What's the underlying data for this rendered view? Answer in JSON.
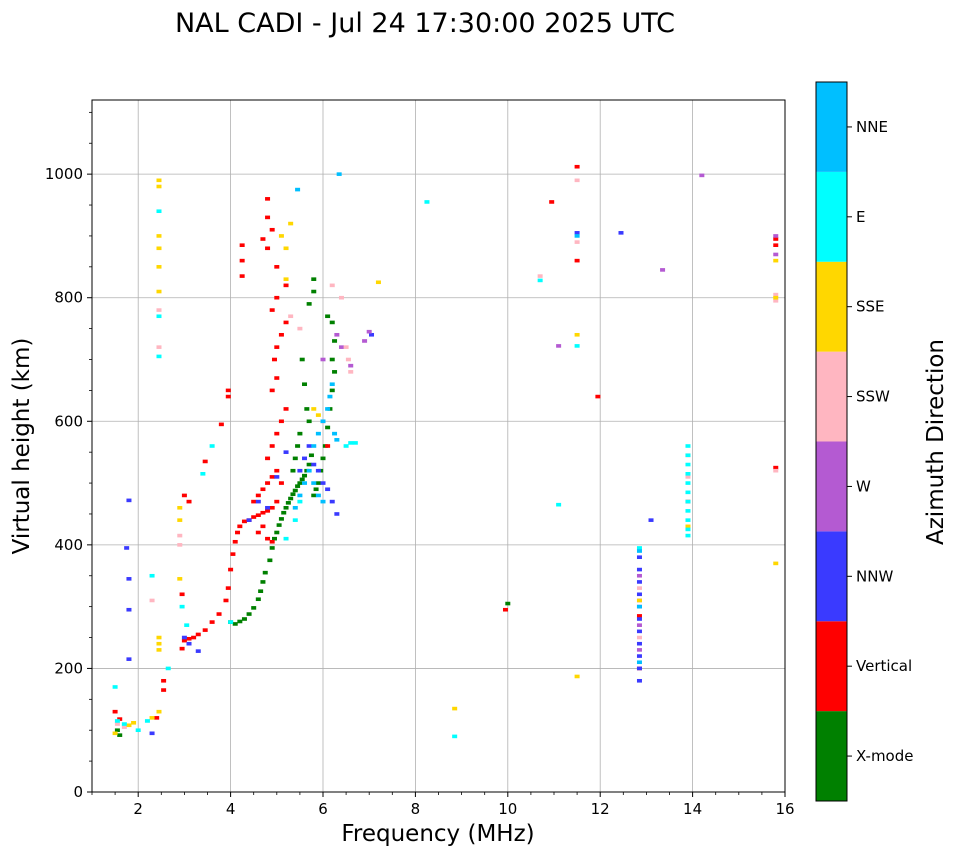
{
  "chart_data": {
    "type": "scatter",
    "title": "NAL CADI - Jul 24 17:30:00 2025 UTC",
    "xlabel": "Frequency (MHz)",
    "ylabel": "Virtual height (km)",
    "xlim": [
      1,
      16
    ],
    "ylim": [
      0,
      1120
    ],
    "xticks": [
      2,
      4,
      6,
      8,
      10,
      12,
      14,
      16
    ],
    "yticks": [
      0,
      200,
      400,
      600,
      800,
      1000
    ],
    "grid": true,
    "colorbar": {
      "title": "Azimuth Direction",
      "categories": [
        {
          "name": "X-mode",
          "color": "#008000"
        },
        {
          "name": "Vertical",
          "color": "#ff0000"
        },
        {
          "name": "NNW",
          "color": "#3a3aff"
        },
        {
          "name": "W",
          "color": "#b45ad2"
        },
        {
          "name": "SSW",
          "color": "#ffb6c1"
        },
        {
          "name": "SSE",
          "color": "#ffd700"
        },
        {
          "name": "E",
          "color": "#00ffff"
        },
        {
          "name": "NNE",
          "color": "#00bfff"
        }
      ]
    },
    "series": [
      {
        "name": "X-mode",
        "points": [
          [
            1.55,
            100
          ],
          [
            1.6,
            92
          ],
          [
            4.0,
            275
          ],
          [
            4.1,
            272
          ],
          [
            4.2,
            276
          ],
          [
            4.3,
            280
          ],
          [
            4.4,
            288
          ],
          [
            4.5,
            298
          ],
          [
            4.6,
            312
          ],
          [
            4.65,
            325
          ],
          [
            4.7,
            340
          ],
          [
            4.75,
            355
          ],
          [
            4.85,
            375
          ],
          [
            4.9,
            395
          ],
          [
            4.95,
            410
          ],
          [
            5.0,
            420
          ],
          [
            5.05,
            432
          ],
          [
            5.1,
            442
          ],
          [
            5.15,
            452
          ],
          [
            5.2,
            460
          ],
          [
            5.25,
            468
          ],
          [
            5.3,
            475
          ],
          [
            5.35,
            482
          ],
          [
            5.4,
            488
          ],
          [
            5.45,
            495
          ],
          [
            5.5,
            500
          ],
          [
            5.55,
            506
          ],
          [
            5.6,
            512
          ],
          [
            5.65,
            520
          ],
          [
            5.7,
            530
          ],
          [
            5.75,
            545
          ],
          [
            5.8,
            480
          ],
          [
            5.85,
            490
          ],
          [
            5.9,
            500
          ],
          [
            5.95,
            520
          ],
          [
            6.0,
            540
          ],
          [
            6.05,
            560
          ],
          [
            6.1,
            590
          ],
          [
            6.15,
            620
          ],
          [
            6.2,
            650
          ],
          [
            6.25,
            680
          ],
          [
            6.2,
            700
          ],
          [
            6.25,
            730
          ],
          [
            6.2,
            760
          ],
          [
            6.1,
            770
          ],
          [
            5.7,
            790
          ],
          [
            5.8,
            810
          ],
          [
            5.8,
            830
          ],
          [
            5.55,
            700
          ],
          [
            5.6,
            660
          ],
          [
            5.65,
            620
          ],
          [
            5.7,
            600
          ],
          [
            5.5,
            580
          ],
          [
            5.45,
            560
          ],
          [
            5.4,
            540
          ],
          [
            5.35,
            520
          ],
          [
            10.0,
            305
          ]
        ]
      },
      {
        "name": "Vertical",
        "points": [
          [
            1.5,
            130
          ],
          [
            1.6,
            118
          ],
          [
            2.4,
            120
          ],
          [
            2.55,
            165
          ],
          [
            2.55,
            180
          ],
          [
            2.95,
            232
          ],
          [
            3.0,
            245
          ],
          [
            3.1,
            248
          ],
          [
            3.2,
            250
          ],
          [
            3.3,
            255
          ],
          [
            3.45,
            262
          ],
          [
            3.6,
            275
          ],
          [
            3.75,
            288
          ],
          [
            3.9,
            310
          ],
          [
            3.95,
            330
          ],
          [
            4.0,
            360
          ],
          [
            4.05,
            385
          ],
          [
            4.1,
            405
          ],
          [
            4.15,
            420
          ],
          [
            4.2,
            430
          ],
          [
            4.3,
            438
          ],
          [
            4.4,
            440
          ],
          [
            4.5,
            445
          ],
          [
            4.6,
            448
          ],
          [
            4.7,
            452
          ],
          [
            4.8,
            455
          ],
          [
            4.9,
            460
          ],
          [
            5.0,
            470
          ],
          [
            4.6,
            420
          ],
          [
            4.7,
            430
          ],
          [
            4.8,
            410
          ],
          [
            4.9,
            405
          ],
          [
            4.5,
            470
          ],
          [
            4.6,
            480
          ],
          [
            4.7,
            490
          ],
          [
            4.8,
            500
          ],
          [
            4.9,
            510
          ],
          [
            5.0,
            520
          ],
          [
            5.1,
            500
          ],
          [
            4.8,
            540
          ],
          [
            4.9,
            560
          ],
          [
            5.0,
            580
          ],
          [
            5.1,
            600
          ],
          [
            5.2,
            620
          ],
          [
            4.9,
            650
          ],
          [
            5.0,
            670
          ],
          [
            4.95,
            700
          ],
          [
            5.0,
            720
          ],
          [
            5.1,
            740
          ],
          [
            5.2,
            760
          ],
          [
            4.9,
            780
          ],
          [
            5.0,
            800
          ],
          [
            5.2,
            820
          ],
          [
            5.0,
            850
          ],
          [
            4.8,
            880
          ],
          [
            4.7,
            895
          ],
          [
            4.9,
            910
          ],
          [
            4.8,
            930
          ],
          [
            4.8,
            960
          ],
          [
            4.25,
            835
          ],
          [
            4.25,
            860
          ],
          [
            4.25,
            885
          ],
          [
            3.95,
            640
          ],
          [
            3.95,
            650
          ],
          [
            3.8,
            595
          ],
          [
            2.95,
            320
          ],
          [
            3.1,
            470
          ],
          [
            3.0,
            480
          ],
          [
            3.45,
            535
          ],
          [
            6.0,
            600
          ],
          [
            6.1,
            560
          ],
          [
            11.95,
            640
          ],
          [
            11.5,
            1012
          ],
          [
            11.5,
            860
          ],
          [
            10.95,
            955
          ],
          [
            9.95,
            295
          ],
          [
            15.8,
            885
          ],
          [
            15.8,
            895
          ],
          [
            15.8,
            525
          ],
          [
            13.9,
            545
          ],
          [
            13.9,
            470
          ],
          [
            12.85,
            200
          ],
          [
            12.85,
            285
          ]
        ]
      },
      {
        "name": "NNW",
        "points": [
          [
            1.8,
            472
          ],
          [
            1.75,
            395
          ],
          [
            1.8,
            345
          ],
          [
            1.8,
            295
          ],
          [
            1.8,
            215
          ],
          [
            2.3,
            95
          ],
          [
            3.0,
            250
          ],
          [
            3.1,
            240
          ],
          [
            5.6,
            540
          ],
          [
            5.7,
            560
          ],
          [
            5.8,
            530
          ],
          [
            5.9,
            520
          ],
          [
            6.0,
            500
          ],
          [
            6.1,
            490
          ],
          [
            6.2,
            470
          ],
          [
            6.3,
            450
          ],
          [
            5.2,
            550
          ],
          [
            5.5,
            520
          ],
          [
            5.0,
            510
          ],
          [
            4.8,
            460
          ],
          [
            4.6,
            470
          ],
          [
            4.4,
            440
          ],
          [
            12.85,
            180
          ],
          [
            12.85,
            200
          ],
          [
            12.85,
            220
          ],
          [
            12.85,
            240
          ],
          [
            12.85,
            260
          ],
          [
            12.85,
            280
          ],
          [
            12.85,
            300
          ],
          [
            12.85,
            320
          ],
          [
            12.85,
            340
          ],
          [
            12.85,
            360
          ],
          [
            12.85,
            380
          ],
          [
            13.1,
            440
          ],
          [
            12.45,
            905
          ],
          [
            11.5,
            905
          ],
          [
            7.05,
            740
          ],
          [
            3.3,
            228
          ]
        ]
      },
      {
        "name": "W",
        "points": [
          [
            6.3,
            740
          ],
          [
            6.6,
            690
          ],
          [
            6.9,
            730
          ],
          [
            7.0,
            745
          ],
          [
            6.4,
            720
          ],
          [
            6.0,
            700
          ],
          [
            12.85,
            230
          ],
          [
            12.85,
            270
          ],
          [
            12.85,
            310
          ],
          [
            12.85,
            350
          ],
          [
            13.35,
            845
          ],
          [
            14.2,
            998
          ],
          [
            15.8,
            900
          ],
          [
            15.8,
            870
          ],
          [
            11.1,
            722
          ]
        ]
      },
      {
        "name": "SSW",
        "points": [
          [
            1.55,
            110
          ],
          [
            1.7,
            105
          ],
          [
            2.3,
            310
          ],
          [
            2.9,
            400
          ],
          [
            2.9,
            415
          ],
          [
            2.45,
            720
          ],
          [
            2.45,
            780
          ],
          [
            5.3,
            770
          ],
          [
            5.5,
            750
          ],
          [
            6.2,
            820
          ],
          [
            6.4,
            800
          ],
          [
            6.5,
            720
          ],
          [
            6.55,
            700
          ],
          [
            6.6,
            680
          ],
          [
            10.7,
            835
          ],
          [
            11.5,
            990
          ],
          [
            11.5,
            890
          ],
          [
            15.8,
            805
          ],
          [
            15.8,
            795
          ],
          [
            12.85,
            250
          ],
          [
            12.85,
            330
          ],
          [
            13.9,
            510
          ],
          [
            15.8,
            520
          ]
        ]
      },
      {
        "name": "SSE",
        "points": [
          [
            1.5,
            95
          ],
          [
            1.8,
            108
          ],
          [
            1.9,
            112
          ],
          [
            2.3,
            120
          ],
          [
            2.45,
            130
          ],
          [
            2.45,
            240
          ],
          [
            2.45,
            230
          ],
          [
            2.45,
            250
          ],
          [
            2.45,
            850
          ],
          [
            2.45,
            880
          ],
          [
            2.45,
            900
          ],
          [
            2.45,
            810
          ],
          [
            2.45,
            980
          ],
          [
            2.45,
            990
          ],
          [
            2.9,
            440
          ],
          [
            2.9,
            460
          ],
          [
            2.9,
            345
          ],
          [
            5.2,
            880
          ],
          [
            5.3,
            920
          ],
          [
            5.1,
            900
          ],
          [
            5.2,
            830
          ],
          [
            5.8,
            620
          ],
          [
            5.9,
            610
          ],
          [
            7.2,
            825
          ],
          [
            8.85,
            135
          ],
          [
            11.5,
            187
          ],
          [
            11.5,
            740
          ],
          [
            15.8,
            370
          ],
          [
            15.8,
            860
          ],
          [
            15.8,
            800
          ],
          [
            12.85,
            310
          ],
          [
            13.9,
            430
          ]
        ]
      },
      {
        "name": "E",
        "points": [
          [
            1.5,
            170
          ],
          [
            1.55,
            115
          ],
          [
            1.7,
            110
          ],
          [
            2.0,
            100
          ],
          [
            2.2,
            115
          ],
          [
            2.3,
            350
          ],
          [
            2.45,
            705
          ],
          [
            2.45,
            770
          ],
          [
            2.45,
            940
          ],
          [
            2.65,
            200
          ],
          [
            2.95,
            300
          ],
          [
            3.05,
            270
          ],
          [
            3.4,
            515
          ],
          [
            3.6,
            560
          ],
          [
            5.2,
            410
          ],
          [
            5.4,
            440
          ],
          [
            5.5,
            470
          ],
          [
            6.5,
            560
          ],
          [
            6.6,
            565
          ],
          [
            6.7,
            565
          ],
          [
            8.25,
            955
          ],
          [
            8.85,
            90
          ],
          [
            11.1,
            465
          ],
          [
            11.5,
            722
          ],
          [
            12.85,
            395
          ],
          [
            13.9,
            415
          ],
          [
            13.9,
            425
          ],
          [
            13.9,
            440
          ],
          [
            13.9,
            455
          ],
          [
            13.9,
            470
          ],
          [
            13.9,
            485
          ],
          [
            13.9,
            500
          ],
          [
            13.9,
            515
          ],
          [
            13.9,
            530
          ],
          [
            13.9,
            545
          ],
          [
            13.9,
            560
          ],
          [
            10.7,
            828
          ],
          [
            4.0,
            275
          ]
        ]
      },
      {
        "name": "NNE",
        "points": [
          [
            5.45,
            975
          ],
          [
            6.35,
            1000
          ],
          [
            5.4,
            460
          ],
          [
            5.5,
            480
          ],
          [
            5.6,
            500
          ],
          [
            5.7,
            520
          ],
          [
            5.8,
            560
          ],
          [
            5.9,
            580
          ],
          [
            6.0,
            600
          ],
          [
            6.1,
            620
          ],
          [
            6.15,
            640
          ],
          [
            6.2,
            660
          ],
          [
            6.25,
            580
          ],
          [
            6.3,
            570
          ],
          [
            6.0,
            470
          ],
          [
            5.9,
            480
          ],
          [
            5.8,
            500
          ],
          [
            12.85,
            300
          ],
          [
            12.85,
            390
          ],
          [
            12.85,
            210
          ],
          [
            11.5,
            900
          ]
        ]
      }
    ]
  }
}
